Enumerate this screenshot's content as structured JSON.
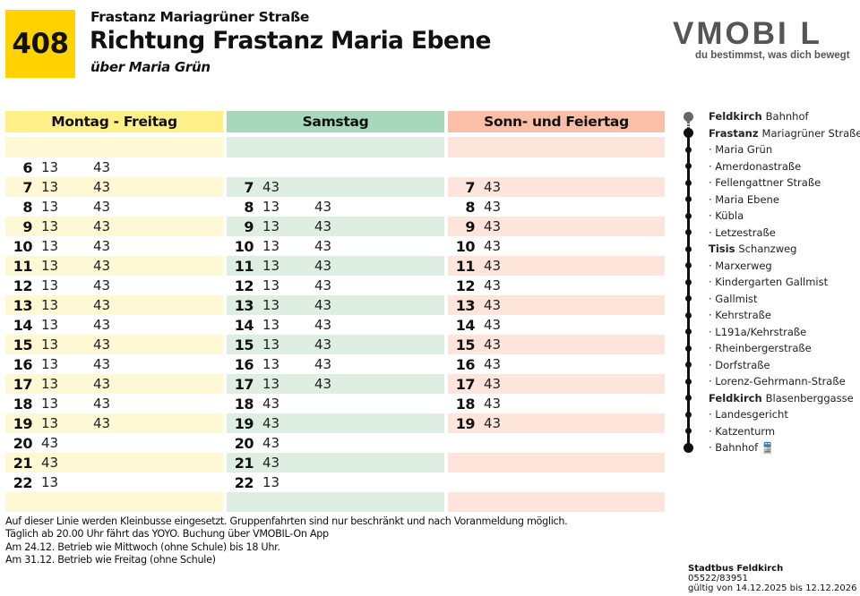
{
  "header": {
    "line_number": "408",
    "from_stop": "Frastanz Mariagrüner Straße",
    "direction": "Richtung Frastanz Maria Ebene",
    "via": "über Maria Grün"
  },
  "brand": {
    "logo": "VMOBI L",
    "tagline": "du bestimmst, was dich bewegt",
    "colors": {
      "badge": "#ffd200",
      "weekday": "#fff08a",
      "saturday": "#a8d8bc",
      "sunday": "#fbbfa8"
    }
  },
  "timetable": {
    "columns": [
      {
        "label": "Montag - Freitag",
        "rows": [
          {
            "hour": "6",
            "m1": "13",
            "m2": "43"
          },
          {
            "hour": "7",
            "m1": "13",
            "m2": "43"
          },
          {
            "hour": "8",
            "m1": "13",
            "m2": "43"
          },
          {
            "hour": "9",
            "m1": "13",
            "m2": "43"
          },
          {
            "hour": "10",
            "m1": "13",
            "m2": "43"
          },
          {
            "hour": "11",
            "m1": "13",
            "m2": "43"
          },
          {
            "hour": "12",
            "m1": "13",
            "m2": "43"
          },
          {
            "hour": "13",
            "m1": "13",
            "m2": "43"
          },
          {
            "hour": "14",
            "m1": "13",
            "m2": "43"
          },
          {
            "hour": "15",
            "m1": "13",
            "m2": "43"
          },
          {
            "hour": "16",
            "m1": "13",
            "m2": "43"
          },
          {
            "hour": "17",
            "m1": "13",
            "m2": "43"
          },
          {
            "hour": "18",
            "m1": "13",
            "m2": "43"
          },
          {
            "hour": "19",
            "m1": "13",
            "m2": "43"
          },
          {
            "hour": "20",
            "m1": "43",
            "m2": ""
          },
          {
            "hour": "21",
            "m1": "43",
            "m2": ""
          },
          {
            "hour": "22",
            "m1": "13",
            "m2": ""
          }
        ]
      },
      {
        "label": "Samstag",
        "rows": [
          {
            "hour": "",
            "m1": "",
            "m2": ""
          },
          {
            "hour": "7",
            "m1": "43",
            "m2": ""
          },
          {
            "hour": "8",
            "m1": "13",
            "m2": "43"
          },
          {
            "hour": "9",
            "m1": "13",
            "m2": "43"
          },
          {
            "hour": "10",
            "m1": "13",
            "m2": "43"
          },
          {
            "hour": "11",
            "m1": "13",
            "m2": "43"
          },
          {
            "hour": "12",
            "m1": "13",
            "m2": "43"
          },
          {
            "hour": "13",
            "m1": "13",
            "m2": "43"
          },
          {
            "hour": "14",
            "m1": "13",
            "m2": "43"
          },
          {
            "hour": "15",
            "m1": "13",
            "m2": "43"
          },
          {
            "hour": "16",
            "m1": "13",
            "m2": "43"
          },
          {
            "hour": "17",
            "m1": "13",
            "m2": "43"
          },
          {
            "hour": "18",
            "m1": "43",
            "m2": ""
          },
          {
            "hour": "19",
            "m1": "43",
            "m2": ""
          },
          {
            "hour": "20",
            "m1": "43",
            "m2": ""
          },
          {
            "hour": "21",
            "m1": "43",
            "m2": ""
          },
          {
            "hour": "22",
            "m1": "13",
            "m2": ""
          }
        ]
      },
      {
        "label": "Sonn- und Feiertag",
        "rows": [
          {
            "hour": "",
            "m1": "",
            "m2": ""
          },
          {
            "hour": "7",
            "m1": "43",
            "m2": ""
          },
          {
            "hour": "8",
            "m1": "43",
            "m2": ""
          },
          {
            "hour": "9",
            "m1": "43",
            "m2": ""
          },
          {
            "hour": "10",
            "m1": "43",
            "m2": ""
          },
          {
            "hour": "11",
            "m1": "43",
            "m2": ""
          },
          {
            "hour": "12",
            "m1": "43",
            "m2": ""
          },
          {
            "hour": "13",
            "m1": "43",
            "m2": ""
          },
          {
            "hour": "14",
            "m1": "43",
            "m2": ""
          },
          {
            "hour": "15",
            "m1": "43",
            "m2": ""
          },
          {
            "hour": "16",
            "m1": "43",
            "m2": ""
          },
          {
            "hour": "17",
            "m1": "43",
            "m2": ""
          },
          {
            "hour": "18",
            "m1": "43",
            "m2": ""
          },
          {
            "hour": "19",
            "m1": "43",
            "m2": ""
          },
          {
            "hour": "",
            "m1": "",
            "m2": ""
          },
          {
            "hour": "",
            "m1": "",
            "m2": ""
          },
          {
            "hour": "",
            "m1": "",
            "m2": ""
          }
        ]
      }
    ]
  },
  "stops": [
    {
      "town": "Feldkirch",
      "name": "Bahnhof",
      "type": "prev"
    },
    {
      "town": "Frastanz",
      "name": "Mariagrüner Straße",
      "type": "current"
    },
    {
      "town": "",
      "name": "· Maria Grün",
      "type": "stop"
    },
    {
      "town": "",
      "name": "· Amerdonastraße",
      "type": "stop"
    },
    {
      "town": "",
      "name": "· Fellengattner Straße",
      "type": "stop"
    },
    {
      "town": "",
      "name": "· Maria Ebene",
      "type": "stop"
    },
    {
      "town": "",
      "name": "· Kübla",
      "type": "stop"
    },
    {
      "town": "",
      "name": "· Letzestraße",
      "type": "stop"
    },
    {
      "town": "Tisis",
      "name": "Schanzweg",
      "type": "stop"
    },
    {
      "town": "",
      "name": "· Marxerweg",
      "type": "stop"
    },
    {
      "town": "",
      "name": "· Kindergarten Gallmist",
      "type": "stop"
    },
    {
      "town": "",
      "name": "· Gallmist",
      "type": "stop"
    },
    {
      "town": "",
      "name": "· Kehrstraße",
      "type": "stop"
    },
    {
      "town": "",
      "name": "· L191a/Kehrstraße",
      "type": "stop"
    },
    {
      "town": "",
      "name": "· Rheinbergerstraße",
      "type": "stop"
    },
    {
      "town": "",
      "name": "· Dorfstraße",
      "type": "stop"
    },
    {
      "town": "",
      "name": "· Lorenz-Gehrmann-Straße",
      "type": "stop"
    },
    {
      "town": "Feldkirch",
      "name": "Blasenberggasse",
      "type": "stop"
    },
    {
      "town": "",
      "name": "· Landesgericht",
      "type": "stop"
    },
    {
      "town": "",
      "name": "· Katzenturm",
      "type": "stop"
    },
    {
      "town": "",
      "name": "· Bahnhof 🚆",
      "type": "end"
    }
  ],
  "notes": [
    "Auf dieser Linie werden Kleinbusse eingesetzt. Gruppenfahrten sind nur beschränkt und nach Voranmeldung möglich.",
    "Täglich ab 20.00 Uhr fährt das YOYO. Buchung über VMOBIL-On App",
    "Am 24.12. Betrieb wie Mittwoch (ohne Schule) bis 18 Uhr.",
    "Am 31.12. Betrieb wie Freitag (ohne Schule)"
  ],
  "footer": {
    "operator": "Stadtbus Feldkirch",
    "phone": "05522/83951",
    "validity": "gültig von 14.12.2025 bis 12.12.2026"
  }
}
